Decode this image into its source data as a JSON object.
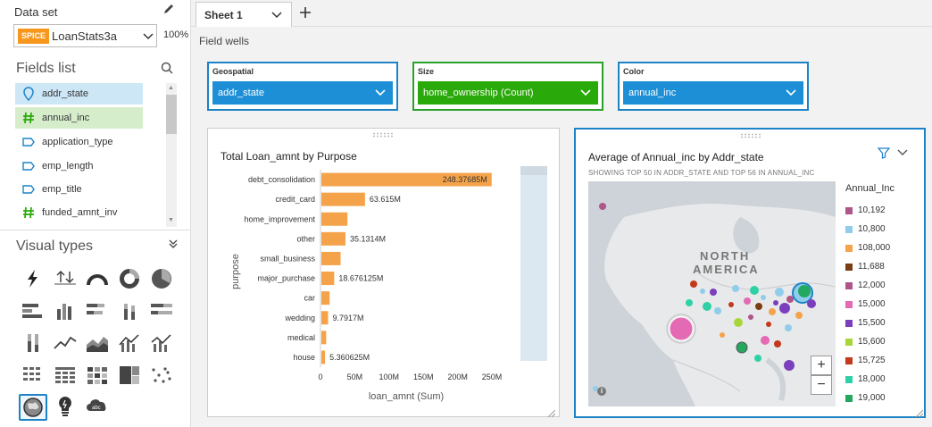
{
  "left": {
    "dataset_label": "Data set",
    "spice_badge": "SPICE",
    "dataset_name": "LoanStats3a",
    "spice_pct": "100%",
    "fields_title": "Fields list",
    "fields": [
      {
        "label": "addr_state",
        "icon": "geo-pin-icon"
      },
      {
        "label": "annual_inc",
        "icon": "hash-icon"
      },
      {
        "label": "application_type",
        "icon": "text-tag-icon"
      },
      {
        "label": "emp_length",
        "icon": "text-tag-icon"
      },
      {
        "label": "emp_title",
        "icon": "text-tag-icon"
      },
      {
        "label": "funded_amnt_inv",
        "icon": "hash-icon"
      }
    ],
    "visual_types_title": "Visual types"
  },
  "tabs": [
    {
      "label": "Sheet 1"
    }
  ],
  "field_wells": {
    "label": "Field wells",
    "wells": [
      {
        "name": "Geospatial",
        "value": "addr_state",
        "border": "#1d83c6",
        "fill": "#1d8fd6"
      },
      {
        "name": "Size",
        "value": "home_ownership (Count)",
        "border": "#2aa22a",
        "fill": "#2aaa0a"
      },
      {
        "name": "Color",
        "value": "annual_inc",
        "border": "#1d83c6",
        "fill": "#1d8fd6"
      }
    ]
  },
  "visual1": {
    "title": "Total Loan_amnt by Purpose",
    "xlabel": "loan_amnt (Sum)",
    "ylabel": "purpose",
    "bar_labels": [
      "248.37685M",
      "63.615M",
      "",
      "35.1314M",
      "",
      "18.676125M",
      "",
      "9.7917M",
      "",
      "5.360625M"
    ],
    "ticks": [
      "0",
      "50M",
      "100M",
      "150M",
      "200M",
      "250M"
    ]
  },
  "visual2": {
    "title": "Average of Annual_inc by Addr_state",
    "subtitle": "SHOWING TOP 50 IN ADDR_STATE AND TOP 56 IN ANNUAL_INC",
    "map_label_1": "NORTH",
    "map_label_2": "AMERICA",
    "legend_title": "Annual_Inc",
    "legend": [
      {
        "label": "10,192",
        "color": "#b0558a"
      },
      {
        "label": "10,800",
        "color": "#8fcdea"
      },
      {
        "label": "108,000",
        "color": "#f5a34a"
      },
      {
        "label": "11,688",
        "color": "#7a3d14"
      },
      {
        "label": "12,000",
        "color": "#b0558a"
      },
      {
        "label": "15,000",
        "color": "#e46ab4"
      },
      {
        "label": "15,500",
        "color": "#7b3fbd"
      },
      {
        "label": "15,600",
        "color": "#a7d63a"
      },
      {
        "label": "15,725",
        "color": "#c2391b"
      },
      {
        "label": "18,000",
        "color": "#2ed1a6"
      },
      {
        "label": "19,000",
        "color": "#24a860"
      }
    ],
    "zoom_in": "+",
    "zoom_out": "−",
    "info": "i"
  },
  "chart_data": {
    "type": "bar",
    "orientation": "horizontal",
    "title": "Total Loan_amnt by Purpose",
    "xlabel": "loan_amnt (Sum)",
    "ylabel": "purpose",
    "categories": [
      "debt_consolidation",
      "credit_card",
      "home_improvement",
      "other",
      "small_business",
      "major_purchase",
      "car",
      "wedding",
      "medical",
      "house"
    ],
    "values": [
      248.37685,
      63.615,
      38.0,
      35.1314,
      28.0,
      18.676125,
      12.0,
      9.7917,
      7.0,
      5.360625
    ],
    "unit": "M",
    "xlim": [
      0,
      250
    ]
  }
}
